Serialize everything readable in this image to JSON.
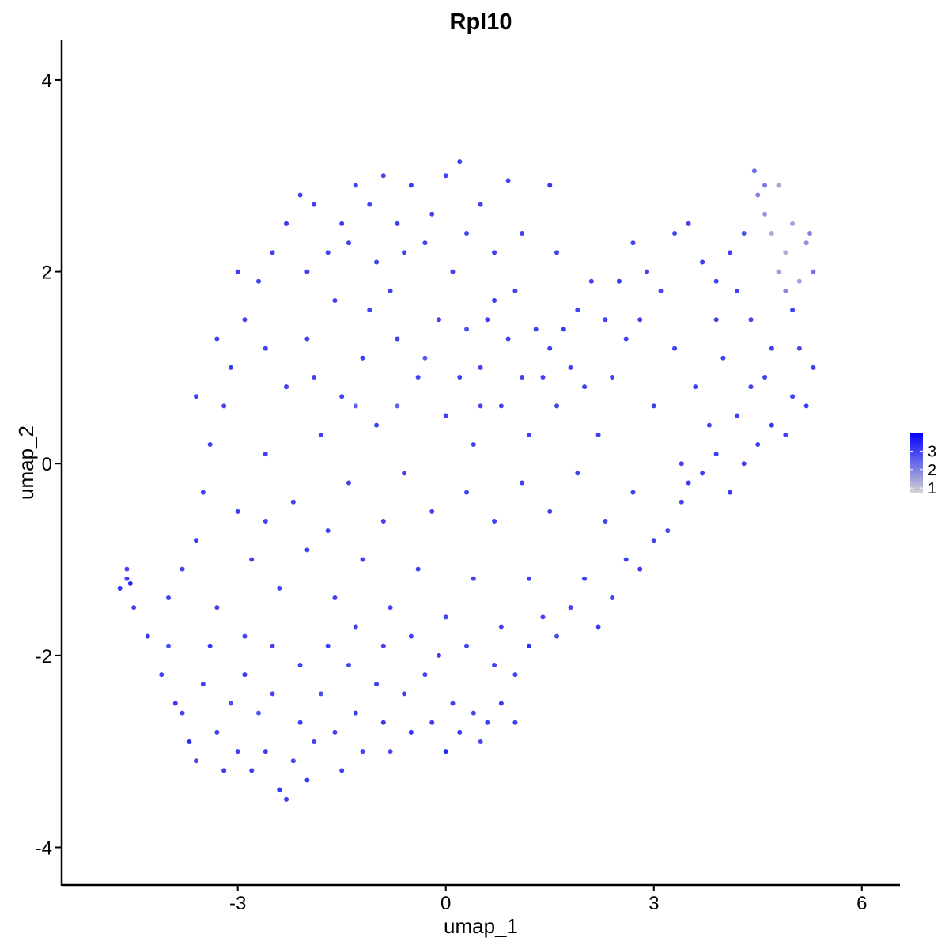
{
  "chart_data": {
    "type": "scatter",
    "title": "Rpl10",
    "xlabel": "umap_1",
    "ylabel": "umap_2",
    "xlim": [
      -5.54,
      6.55
    ],
    "ylim": [
      -4.4,
      4.42
    ],
    "xticks": [
      -3,
      0,
      3,
      6
    ],
    "xtick_labels": [
      "-3",
      "0",
      "3",
      "6"
    ],
    "yticks": [
      -4,
      -2,
      0,
      2,
      4
    ],
    "ytick_labels": [
      "-4",
      "-2",
      "0",
      "2",
      "4"
    ],
    "grid": false,
    "legend": {
      "placement": "right",
      "type": "colorbar",
      "range": [
        0.75,
        4.0
      ],
      "ticks": [
        1,
        2,
        3
      ],
      "tick_labels": [
        "1",
        "2",
        "3"
      ],
      "color_low": "#d3d3d3",
      "color_high": "#0000ff"
    },
    "point_color_encoding": "expression",
    "points": [
      [
        -4.7,
        -1.3,
        3.2
      ],
      [
        -4.6,
        -1.2,
        3.0
      ],
      [
        -4.55,
        -1.25,
        3.4
      ],
      [
        -4.6,
        -1.1,
        2.9
      ],
      [
        -4.5,
        -1.5,
        3.0
      ],
      [
        -4.3,
        -1.8,
        3.1
      ],
      [
        -4.1,
        -2.2,
        3.0
      ],
      [
        -4.0,
        -1.9,
        2.8
      ],
      [
        -3.9,
        -2.5,
        3.1
      ],
      [
        -3.8,
        -2.6,
        3.0
      ],
      [
        -3.7,
        -2.9,
        3.3
      ],
      [
        -3.6,
        -3.1,
        2.9
      ],
      [
        -3.5,
        -2.3,
        3.0
      ],
      [
        -3.4,
        -1.9,
        3.2
      ],
      [
        -3.3,
        -2.8,
        3.0
      ],
      [
        -3.2,
        -3.2,
        3.1
      ],
      [
        -3.1,
        -2.5,
        2.8
      ],
      [
        -3.0,
        -3.0,
        3.0
      ],
      [
        -2.9,
        -2.2,
        3.2
      ],
      [
        -2.8,
        -3.2,
        3.0
      ],
      [
        -2.7,
        -2.6,
        2.7
      ],
      [
        -2.6,
        -3.0,
        3.1
      ],
      [
        -2.5,
        -2.4,
        3.0
      ],
      [
        -2.4,
        -3.4,
        3.2
      ],
      [
        -2.3,
        -3.5,
        3.0
      ],
      [
        -2.2,
        -3.1,
        2.9
      ],
      [
        -2.1,
        -2.7,
        3.0
      ],
      [
        -2.0,
        -3.3,
        3.1
      ],
      [
        -1.9,
        -2.9,
        3.0
      ],
      [
        -1.8,
        -2.4,
        2.8
      ],
      [
        -1.6,
        -2.8,
        3.0
      ],
      [
        -1.5,
        -3.2,
        3.0
      ],
      [
        -1.4,
        -2.1,
        2.9
      ],
      [
        -1.3,
        -2.6,
        3.1
      ],
      [
        -1.2,
        -3.0,
        3.0
      ],
      [
        -1.0,
        -2.3,
        3.0
      ],
      [
        -0.9,
        -2.7,
        3.1
      ],
      [
        -0.8,
        -3.0,
        2.9
      ],
      [
        -0.6,
        -2.4,
        3.0
      ],
      [
        -0.5,
        -2.8,
        3.2
      ],
      [
        -0.3,
        -2.2,
        3.0
      ],
      [
        -0.2,
        -2.7,
        3.0
      ],
      [
        0.0,
        -3.0,
        3.4
      ],
      [
        0.1,
        -2.5,
        3.0
      ],
      [
        0.2,
        -2.8,
        3.1
      ],
      [
        0.4,
        -2.6,
        3.0
      ],
      [
        0.5,
        -2.9,
        2.9
      ],
      [
        0.6,
        -2.7,
        3.0
      ],
      [
        0.8,
        -2.5,
        3.1
      ],
      [
        1.0,
        -2.2,
        3.0
      ],
      [
        1.0,
        -2.7,
        3.0
      ],
      [
        1.2,
        -1.9,
        3.2
      ],
      [
        1.4,
        -1.6,
        3.0
      ],
      [
        1.6,
        -1.8,
        2.9
      ],
      [
        1.8,
        -1.5,
        3.0
      ],
      [
        2.0,
        -1.2,
        3.0
      ],
      [
        2.2,
        -1.7,
        3.1
      ],
      [
        2.4,
        -1.4,
        3.0
      ],
      [
        2.6,
        -1.0,
        3.0
      ],
      [
        2.8,
        -1.1,
        3.1
      ],
      [
        3.0,
        -0.8,
        3.0
      ],
      [
        3.2,
        -0.7,
        2.9
      ],
      [
        3.4,
        -0.4,
        3.0
      ],
      [
        3.5,
        -0.2,
        3.1
      ],
      [
        3.7,
        -0.1,
        3.0
      ],
      [
        3.9,
        0.1,
        3.0
      ],
      [
        4.1,
        -0.3,
        3.1
      ],
      [
        4.3,
        0.0,
        3.0
      ],
      [
        4.5,
        0.2,
        3.0
      ],
      [
        4.7,
        0.4,
        3.2
      ],
      [
        4.9,
        0.3,
        3.0
      ],
      [
        5.0,
        0.7,
        3.0
      ],
      [
        5.2,
        0.6,
        3.1
      ],
      [
        5.3,
        1.0,
        3.0
      ],
      [
        5.1,
        1.2,
        2.9
      ],
      [
        5.0,
        1.6,
        3.0
      ],
      [
        5.3,
        2.0,
        2.2
      ],
      [
        5.2,
        2.3,
        1.8
      ],
      [
        5.0,
        2.5,
        1.5
      ],
      [
        4.9,
        2.2,
        1.3
      ],
      [
        4.8,
        2.0,
        1.6
      ],
      [
        4.7,
        2.4,
        1.4
      ],
      [
        4.6,
        2.6,
        1.7
      ],
      [
        4.5,
        2.8,
        2.0
      ],
      [
        4.45,
        3.05,
        2.3
      ],
      [
        4.6,
        2.9,
        2.1
      ],
      [
        4.8,
        2.9,
        1.5
      ],
      [
        5.1,
        1.9,
        1.5
      ],
      [
        4.9,
        1.8,
        1.9
      ],
      [
        5.25,
        2.4,
        2.0
      ],
      [
        4.3,
        2.4,
        2.8
      ],
      [
        4.1,
        2.2,
        3.0
      ],
      [
        3.9,
        1.9,
        3.0
      ],
      [
        3.7,
        2.1,
        3.1
      ],
      [
        3.5,
        2.5,
        3.0
      ],
      [
        3.3,
        2.4,
        3.0
      ],
      [
        3.1,
        1.8,
        2.9
      ],
      [
        2.9,
        2.0,
        3.0
      ],
      [
        2.7,
        2.3,
        3.0
      ],
      [
        2.5,
        1.9,
        3.1
      ],
      [
        2.3,
        1.5,
        3.0
      ],
      [
        2.1,
        1.9,
        3.0
      ],
      [
        1.9,
        1.6,
        3.0
      ],
      [
        1.7,
        1.4,
        3.1
      ],
      [
        1.5,
        1.2,
        3.0
      ],
      [
        1.3,
        1.4,
        3.0
      ],
      [
        1.1,
        0.9,
        3.0
      ],
      [
        0.9,
        1.3,
        3.0
      ],
      [
        0.7,
        1.7,
        3.1
      ],
      [
        0.5,
        1.0,
        3.0
      ],
      [
        0.3,
        1.4,
        2.8
      ],
      [
        0.1,
        2.0,
        3.0
      ],
      [
        -0.1,
        1.5,
        3.0
      ],
      [
        -0.3,
        2.3,
        3.0
      ],
      [
        -0.5,
        2.9,
        3.1
      ],
      [
        -0.7,
        2.5,
        3.0
      ],
      [
        -0.9,
        3.0,
        3.0
      ],
      [
        -1.1,
        2.7,
        3.0
      ],
      [
        -1.3,
        2.9,
        3.0
      ],
      [
        -1.5,
        2.5,
        3.1
      ],
      [
        -1.7,
        2.2,
        3.0
      ],
      [
        -1.9,
        2.7,
        3.0
      ],
      [
        -2.1,
        2.8,
        3.0
      ],
      [
        -2.3,
        2.5,
        3.1
      ],
      [
        -2.5,
        2.2,
        3.0
      ],
      [
        -2.7,
        1.9,
        3.0
      ],
      [
        -2.9,
        1.5,
        3.0
      ],
      [
        -3.1,
        1.0,
        3.1
      ],
      [
        -3.2,
        0.6,
        3.0
      ],
      [
        -3.4,
        0.2,
        3.0
      ],
      [
        -3.5,
        -0.3,
        3.0
      ],
      [
        -3.6,
        -0.8,
        3.1
      ],
      [
        -3.8,
        -1.1,
        3.0
      ],
      [
        -4.0,
        -1.4,
        3.0
      ],
      [
        0.2,
        3.15,
        3.0
      ],
      [
        0.0,
        3.0,
        3.0
      ],
      [
        0.5,
        2.7,
        3.0
      ],
      [
        0.9,
        2.95,
        3.0
      ],
      [
        1.5,
        2.9,
        3.2
      ],
      [
        1.6,
        2.2,
        3.0
      ],
      [
        -2.0,
        1.3,
        3.0
      ],
      [
        -1.6,
        1.7,
        3.0
      ],
      [
        -1.2,
        1.1,
        3.0
      ],
      [
        -0.8,
        1.8,
        3.0
      ],
      [
        -0.4,
        0.9,
        3.0
      ],
      [
        0.0,
        0.5,
        3.0
      ],
      [
        0.4,
        0.2,
        3.0
      ],
      [
        0.8,
        0.6,
        3.0
      ],
      [
        1.2,
        0.3,
        3.0
      ],
      [
        1.6,
        0.6,
        3.0
      ],
      [
        2.0,
        0.8,
        3.0
      ],
      [
        2.2,
        0.3,
        3.0
      ],
      [
        2.4,
        0.9,
        3.0
      ],
      [
        2.8,
        1.5,
        3.0
      ],
      [
        3.3,
        1.2,
        3.0
      ],
      [
        3.6,
        0.8,
        3.0
      ],
      [
        4.0,
        1.1,
        3.0
      ],
      [
        4.4,
        1.5,
        3.0
      ],
      [
        4.6,
        0.9,
        3.0
      ],
      [
        4.2,
        0.5,
        3.0
      ],
      [
        3.0,
        0.6,
        3.0
      ],
      [
        -2.6,
        0.1,
        3.0
      ],
      [
        -2.2,
        -0.4,
        3.0
      ],
      [
        -1.8,
        0.3,
        3.0
      ],
      [
        -1.4,
        -0.2,
        3.0
      ],
      [
        -1.0,
        0.4,
        3.0
      ],
      [
        -0.6,
        -0.1,
        3.0
      ],
      [
        -0.2,
        -0.5,
        3.0
      ],
      [
        0.3,
        -0.3,
        3.0
      ],
      [
        0.7,
        -0.6,
        3.0
      ],
      [
        1.1,
        -0.2,
        3.0
      ],
      [
        1.5,
        -0.5,
        3.0
      ],
      [
        1.9,
        -0.1,
        3.0
      ],
      [
        2.3,
        -0.6,
        3.0
      ],
      [
        2.7,
        -0.3,
        3.0
      ],
      [
        -3.0,
        -0.5,
        3.0
      ],
      [
        -2.8,
        -1.0,
        3.0
      ],
      [
        -2.4,
        -1.3,
        3.0
      ],
      [
        -2.0,
        -0.9,
        3.0
      ],
      [
        -1.6,
        -1.4,
        3.0
      ],
      [
        -1.2,
        -1.0,
        3.0
      ],
      [
        -0.8,
        -1.5,
        3.0
      ],
      [
        -0.4,
        -1.1,
        3.0
      ],
      [
        0.0,
        -1.6,
        3.0
      ],
      [
        0.4,
        -1.2,
        3.0
      ],
      [
        0.8,
        -1.7,
        3.0
      ],
      [
        1.2,
        -1.2,
        3.0
      ],
      [
        -3.3,
        -1.5,
        3.0
      ],
      [
        -2.9,
        -1.8,
        3.0
      ],
      [
        -2.5,
        -1.9,
        3.0
      ],
      [
        -2.1,
        -2.1,
        3.0
      ],
      [
        -1.7,
        -1.9,
        3.0
      ],
      [
        -1.3,
        -1.7,
        3.0
      ],
      [
        -0.9,
        -1.9,
        3.0
      ],
      [
        -0.5,
        -1.8,
        3.0
      ],
      [
        -0.1,
        -2.0,
        3.0
      ],
      [
        0.3,
        -1.9,
        3.0
      ],
      [
        0.7,
        -2.1,
        3.0
      ],
      [
        -2.6,
        1.2,
        3.0
      ],
      [
        -2.3,
        0.8,
        3.0
      ],
      [
        -1.9,
        0.9,
        3.0
      ],
      [
        -1.5,
        0.7,
        3.0
      ],
      [
        -1.1,
        1.6,
        3.0
      ],
      [
        -0.7,
        1.3,
        3.0
      ],
      [
        -0.3,
        1.1,
        2.6
      ],
      [
        0.2,
        0.9,
        3.0
      ],
      [
        0.6,
        1.5,
        3.0
      ],
      [
        1.0,
        1.8,
        3.0
      ],
      [
        -2.0,
        2.0,
        3.0
      ],
      [
        -1.4,
        2.3,
        3.0
      ],
      [
        -1.0,
        2.1,
        3.0
      ],
      [
        -0.6,
        2.2,
        3.0
      ],
      [
        -0.2,
        2.6,
        3.0
      ],
      [
        0.3,
        2.4,
        3.0
      ],
      [
        0.7,
        2.2,
        3.0
      ],
      [
        1.1,
        2.4,
        3.0
      ],
      [
        -3.6,
        0.7,
        3.0
      ],
      [
        -3.3,
        1.3,
        3.0
      ],
      [
        -3.0,
        2.0,
        3.0
      ],
      [
        -2.6,
        -0.6,
        3.0
      ],
      [
        -1.7,
        -0.7,
        3.0
      ],
      [
        -0.9,
        -0.6,
        3.0
      ],
      [
        -0.7,
        0.6,
        2.5
      ],
      [
        -1.3,
        0.6,
        2.5
      ],
      [
        0.5,
        0.6,
        3.0
      ],
      [
        1.4,
        0.9,
        3.0
      ],
      [
        1.8,
        1.0,
        3.0
      ],
      [
        2.6,
        1.3,
        3.0
      ],
      [
        3.9,
        1.5,
        3.0
      ],
      [
        4.2,
        1.8,
        3.0
      ],
      [
        4.7,
        1.2,
        3.0
      ],
      [
        4.4,
        0.8,
        3.0
      ],
      [
        3.8,
        0.4,
        3.0
      ],
      [
        3.4,
        0.0,
        3.0
      ]
    ]
  }
}
